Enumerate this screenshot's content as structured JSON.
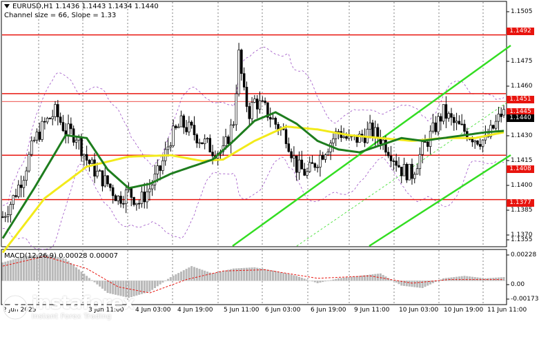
{
  "header": {
    "symbol_line": "EURUSD,H1  1.1436 1.1443 1.1434 1.1440",
    "indicator_line": "Channel size = 66, Slope = 1.33"
  },
  "macd_label": "MACD(12,26,9) 0.00028 0.00007",
  "price_axis": [
    "1.1505",
    "1.1475",
    "1.1460",
    "1.1430",
    "1.1415",
    "1.1400",
    "1.1385",
    "1.1370",
    "1.1355"
  ],
  "macd_axis": [
    "0.00228",
    "0.00",
    "-0.00173"
  ],
  "badges": {
    "level_1492": "1.1492",
    "level_1451": "1.1451",
    "level_1445": "1.1445",
    "current": "1.1440",
    "level_1408": "1.1408",
    "level_1377": "1.1377"
  },
  "time_axis": [
    "2 Jun 2025",
    "3 Jun 11:00",
    "4 Jun 03:00",
    "4 Jun 19:00",
    "5 Jun 11:00",
    "6 Jun 03:00",
    "6 Jun 19:00",
    "9 Jun 11:00",
    "10 Jun 03:00",
    "10 Jun 19:00",
    "11 Jun 11:00"
  ],
  "logo": {
    "brand": "instaforex",
    "tagline": "Instant Forex Trading"
  },
  "colors": {
    "level_line": "#e8140e",
    "ma_fast": "#1e7d1e",
    "ma_slow": "#f2ea1a",
    "channel": "#33dd22",
    "candle": "#000000",
    "bollinger": "#9b4ec4",
    "macd_hist": "#b8b8b8",
    "macd_signal": "#e8140e"
  },
  "chart_data": {
    "type": "candlestick",
    "symbol": "EURUSD",
    "timeframe": "H1",
    "last": {
      "open": 1.1436,
      "high": 1.1443,
      "low": 1.1434,
      "close": 1.144
    },
    "levels": [
      1.1492,
      1.1451,
      1.1408,
      1.1377
    ],
    "ylim": [
      1.1347,
      1.1513
    ],
    "close_path": [
      [
        0,
        1.1365
      ],
      [
        4,
        1.1378
      ],
      [
        8,
        1.1395
      ],
      [
        12,
        1.1418
      ],
      [
        16,
        1.143
      ],
      [
        20,
        1.1438
      ],
      [
        24,
        1.1425
      ],
      [
        28,
        1.1422
      ],
      [
        32,
        1.1405
      ],
      [
        36,
        1.1395
      ],
      [
        40,
        1.1388
      ],
      [
        44,
        1.1378
      ],
      [
        48,
        1.1382
      ],
      [
        52,
        1.1375
      ],
      [
        56,
        1.1385
      ],
      [
        60,
        1.1398
      ],
      [
        64,
        1.142
      ],
      [
        68,
        1.143
      ],
      [
        72,
        1.1425
      ],
      [
        76,
        1.1418
      ],
      [
        80,
        1.1412
      ],
      [
        84,
        1.141
      ],
      [
        88,
        1.1432
      ],
      [
        90,
        1.1478
      ],
      [
        92,
        1.145
      ],
      [
        94,
        1.1438
      ],
      [
        96,
        1.1446
      ],
      [
        100,
        1.144
      ],
      [
        104,
        1.143
      ],
      [
        108,
        1.1422
      ],
      [
        112,
        1.14
      ],
      [
        116,
        1.1395
      ],
      [
        120,
        1.1405
      ],
      [
        124,
        1.1415
      ],
      [
        128,
        1.1425
      ],
      [
        132,
        1.1418
      ],
      [
        136,
        1.142
      ],
      [
        140,
        1.1425
      ],
      [
        144,
        1.142
      ],
      [
        148,
        1.141
      ],
      [
        152,
        1.1398
      ],
      [
        156,
        1.1395
      ],
      [
        160,
        1.1412
      ],
      [
        164,
        1.1425
      ],
      [
        168,
        1.1438
      ],
      [
        172,
        1.143
      ],
      [
        176,
        1.1425
      ],
      [
        180,
        1.142
      ],
      [
        184,
        1.1418
      ],
      [
        188,
        1.143
      ],
      [
        191,
        1.144
      ]
    ],
    "ma_fast_path": [
      [
        0,
        1.135
      ],
      [
        12,
        1.1385
      ],
      [
        24,
        1.1422
      ],
      [
        32,
        1.142
      ],
      [
        40,
        1.1398
      ],
      [
        48,
        1.1385
      ],
      [
        56,
        1.1388
      ],
      [
        64,
        1.1395
      ],
      [
        72,
        1.14
      ],
      [
        80,
        1.1405
      ],
      [
        88,
        1.1418
      ],
      [
        96,
        1.1432
      ],
      [
        104,
        1.1438
      ],
      [
        112,
        1.143
      ],
      [
        120,
        1.1418
      ],
      [
        128,
        1.1412
      ],
      [
        136,
        1.141
      ],
      [
        144,
        1.1415
      ],
      [
        152,
        1.142
      ],
      [
        160,
        1.1418
      ],
      [
        168,
        1.142
      ],
      [
        176,
        1.1422
      ],
      [
        184,
        1.1424
      ],
      [
        191,
        1.1425
      ]
    ],
    "ma_slow_path": [
      [
        0,
        1.134
      ],
      [
        16,
        1.1378
      ],
      [
        32,
        1.14
      ],
      [
        48,
        1.1407
      ],
      [
        64,
        1.1408
      ],
      [
        76,
        1.1404
      ],
      [
        84,
        1.1405
      ],
      [
        96,
        1.1418
      ],
      [
        108,
        1.1428
      ],
      [
        120,
        1.1426
      ],
      [
        132,
        1.1422
      ],
      [
        144,
        1.142
      ],
      [
        156,
        1.1418
      ],
      [
        168,
        1.142
      ],
      [
        180,
        1.142
      ],
      [
        191,
        1.1424
      ]
    ],
    "macd_hist_path": [
      [
        0,
        0.0015
      ],
      [
        8,
        0.002
      ],
      [
        16,
        0.0022
      ],
      [
        24,
        0.0018
      ],
      [
        32,
        0.0004
      ],
      [
        40,
        -0.001
      ],
      [
        48,
        -0.0014
      ],
      [
        56,
        -0.0009
      ],
      [
        64,
        0.0003
      ],
      [
        72,
        0.0012
      ],
      [
        80,
        0.0006
      ],
      [
        88,
        0.001
      ],
      [
        96,
        0.0011
      ],
      [
        104,
        0.0008
      ],
      [
        112,
        0.0004
      ],
      [
        120,
        -0.0002
      ],
      [
        128,
        0.0002
      ],
      [
        136,
        0.0004
      ],
      [
        144,
        0.0006
      ],
      [
        152,
        -0.0004
      ],
      [
        160,
        -0.0006
      ],
      [
        168,
        0.0002
      ],
      [
        176,
        0.0004
      ],
      [
        184,
        0.0002
      ],
      [
        191,
        0.0003
      ]
    ],
    "macd_signal_path": [
      [
        0,
        0.0012
      ],
      [
        16,
        0.002
      ],
      [
        32,
        0.001
      ],
      [
        44,
        -0.0005
      ],
      [
        56,
        -0.001
      ],
      [
        70,
        0.0001
      ],
      [
        84,
        0.0008
      ],
      [
        100,
        0.0009
      ],
      [
        120,
        0.0002
      ],
      [
        140,
        0.0004
      ],
      [
        156,
        -0.0002
      ],
      [
        170,
        0.0001
      ],
      [
        191,
        0.0001
      ]
    ]
  }
}
